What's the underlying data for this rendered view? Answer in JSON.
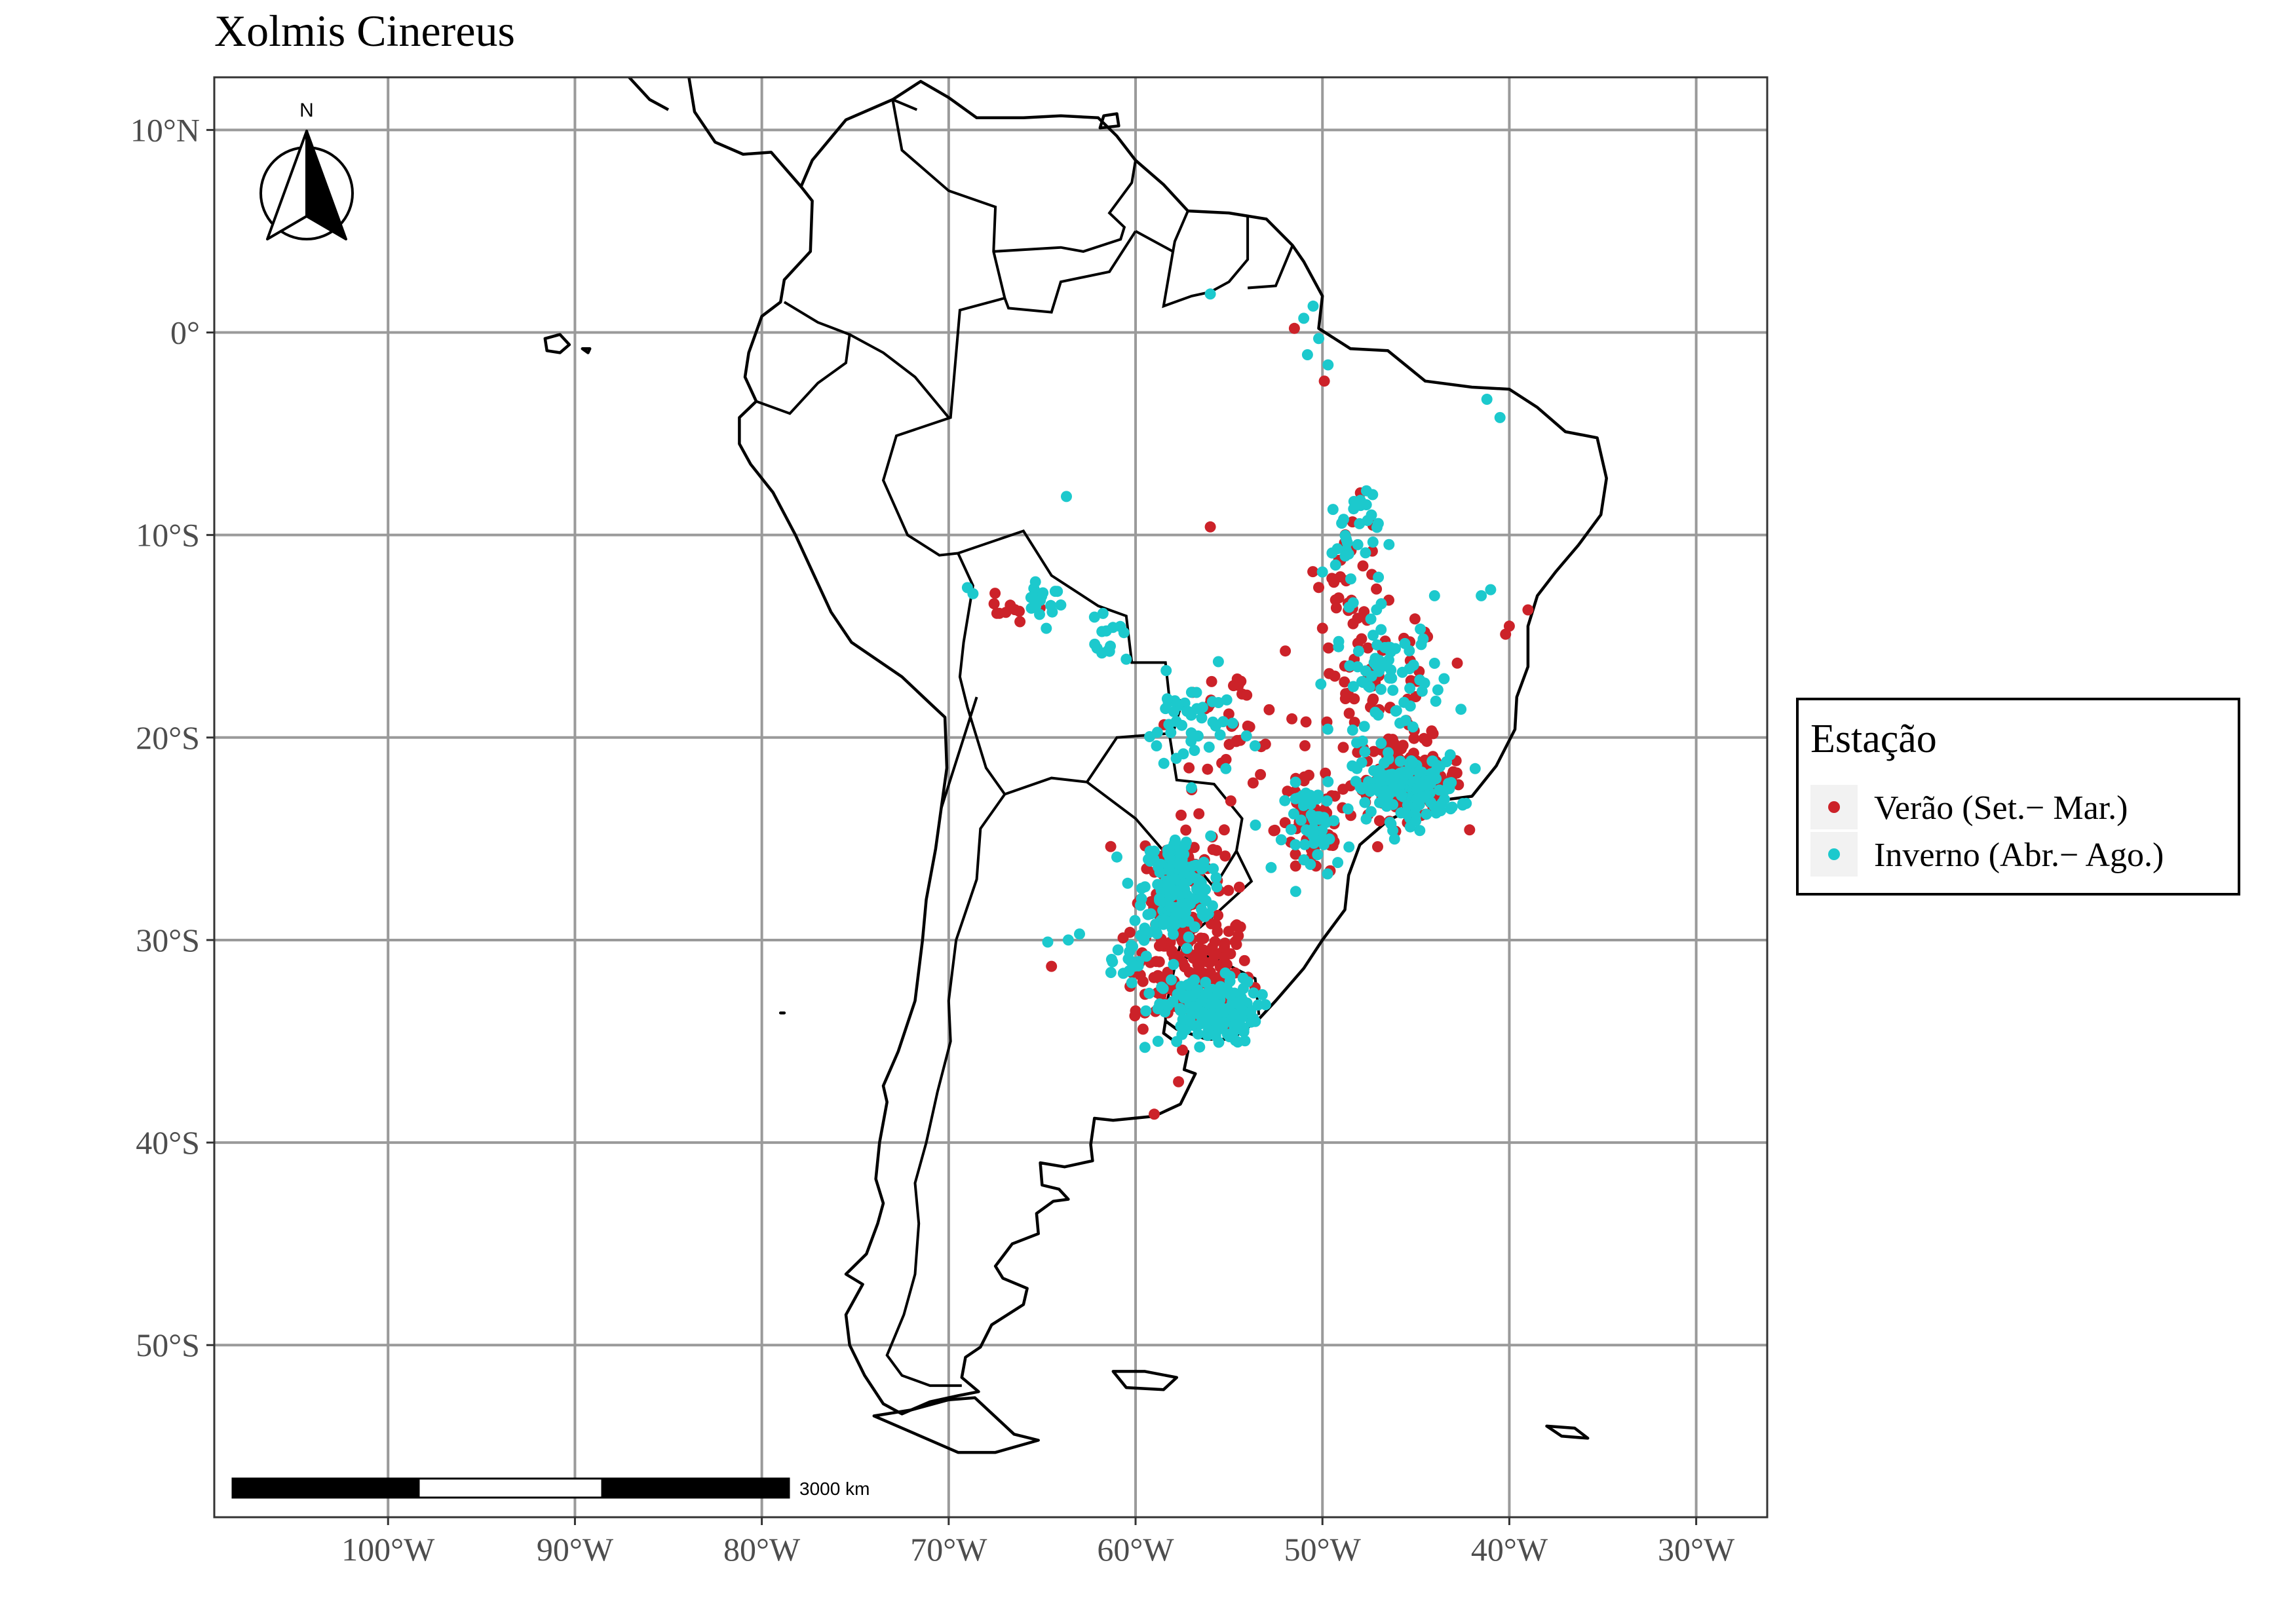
{
  "title": "Xolmis Cinereus",
  "map": {
    "lon_range": [
      -109.3,
      -26.2
    ],
    "lat_range": [
      -58.5,
      12.6
    ],
    "x_ticks": [
      {
        "lon": -100,
        "label": "100°W"
      },
      {
        "lon": -90,
        "label": "90°W"
      },
      {
        "lon": -80,
        "label": "80°W"
      },
      {
        "lon": -70,
        "label": "70°W"
      },
      {
        "lon": -60,
        "label": "60°W"
      },
      {
        "lon": -50,
        "label": "50°W"
      },
      {
        "lon": -40,
        "label": "40°W"
      },
      {
        "lon": -30,
        "label": "30°W"
      }
    ],
    "y_ticks": [
      {
        "lat": 10,
        "label": "10°N"
      },
      {
        "lat": 0,
        "label": "0°"
      },
      {
        "lat": -10,
        "label": "10°S"
      },
      {
        "lat": -20,
        "label": "20°S"
      },
      {
        "lat": -30,
        "label": "30°S"
      },
      {
        "lat": -40,
        "label": "40°S"
      },
      {
        "lat": -50,
        "label": "50°S"
      }
    ],
    "grid": true
  },
  "north_arrow": {
    "label": "N"
  },
  "scale_bar": {
    "label": "3000 km",
    "segments": 3
  },
  "legend": {
    "title": "Estação",
    "position": "right",
    "items": [
      {
        "label": "Verão (Set.− Mar.)",
        "color": "#cc2229"
      },
      {
        "label": "Inverno (Abr.− Ago.)",
        "color": "#1cc9cd"
      }
    ]
  },
  "colors": {
    "summer": "#cc2229",
    "winter": "#1cc9cd",
    "grid": "#9a9a9a",
    "land_outline": "#000000"
  },
  "chart_data": {
    "type": "scatter",
    "title": "Xolmis Cinereus",
    "xlabel": "",
    "ylabel": "",
    "xlim": [
      -109.3,
      -26.2
    ],
    "ylim": [
      -58.5,
      12.6
    ],
    "series": [
      {
        "name": "Verão (Set.− Mar.)",
        "color": "#cc2229",
        "clusters": [
          {
            "lon": -57.0,
            "lat": -31.5,
            "spread": [
              3.2,
              3.0
            ],
            "n": 150
          },
          {
            "lon": -57.5,
            "lat": -27.0,
            "spread": [
              2.2,
              2.8
            ],
            "n": 90
          },
          {
            "lon": -45.5,
            "lat": -22.0,
            "spread": [
              3.0,
              2.0
            ],
            "n": 110
          },
          {
            "lon": -50.5,
            "lat": -24.5,
            "spread": [
              2.0,
              2.5
            ],
            "n": 60
          },
          {
            "lon": -47.0,
            "lat": -17.5,
            "spread": [
              3.5,
              3.5
            ],
            "n": 60
          },
          {
            "lon": -48.5,
            "lat": -11.5,
            "spread": [
              1.8,
              3.0
            ],
            "n": 30
          },
          {
            "lon": -55.0,
            "lat": -19.5,
            "spread": [
              3.0,
              3.0
            ],
            "n": 35
          },
          {
            "lon": -67.0,
            "lat": -14.0,
            "spread": [
              1.2,
              1.0
            ],
            "n": 10
          }
        ],
        "points": [
          {
            "lon": -56.0,
            "lat": -9.6
          },
          {
            "lon": -49.9,
            "lat": -2.4
          },
          {
            "lon": -51.5,
            "lat": 0.2
          },
          {
            "lon": -64.5,
            "lat": -31.3
          },
          {
            "lon": -60.0,
            "lat": -33.5
          },
          {
            "lon": -59.0,
            "lat": -38.6
          },
          {
            "lon": -57.7,
            "lat": -37.0
          },
          {
            "lon": -40.0,
            "lat": -14.5
          },
          {
            "lon": -39.0,
            "lat": -13.7
          },
          {
            "lon": -40.2,
            "lat": -14.9
          },
          {
            "lon": -59.6,
            "lat": -34.4
          }
        ]
      },
      {
        "name": "Inverno (Abr.− Ago.)",
        "color": "#1cc9cd",
        "clusters": [
          {
            "lon": -57.8,
            "lat": -27.5,
            "spread": [
              1.8,
              2.6
            ],
            "n": 170
          },
          {
            "lon": -56.0,
            "lat": -33.5,
            "spread": [
              2.5,
              1.6
            ],
            "n": 170
          },
          {
            "lon": -45.5,
            "lat": -22.5,
            "spread": [
              2.8,
              1.6
            ],
            "n": 150
          },
          {
            "lon": -50.2,
            "lat": -24.5,
            "spread": [
              1.8,
              2.2
            ],
            "n": 50
          },
          {
            "lon": -46.5,
            "lat": -17.0,
            "spread": [
              3.0,
              3.0
            ],
            "n": 70
          },
          {
            "lon": -48.5,
            "lat": -10.0,
            "spread": [
              1.5,
              3.0
            ],
            "n": 35
          },
          {
            "lon": -57.0,
            "lat": -19.5,
            "spread": [
              2.5,
              2.5
            ],
            "n": 45
          },
          {
            "lon": -65.0,
            "lat": -13.0,
            "spread": [
              1.2,
              1.3
            ],
            "n": 18
          },
          {
            "lon": -61.5,
            "lat": -15.5,
            "spread": [
              1.2,
              1.2
            ],
            "n": 14
          },
          {
            "lon": -60.0,
            "lat": -31.0,
            "spread": [
              1.0,
              2.0
            ],
            "n": 20
          }
        ],
        "points": [
          {
            "lon": -56.0,
            "lat": 1.9
          },
          {
            "lon": -50.5,
            "lat": 1.3
          },
          {
            "lon": -51.0,
            "lat": 0.7
          },
          {
            "lon": -50.2,
            "lat": -0.3
          },
          {
            "lon": -50.8,
            "lat": -1.1
          },
          {
            "lon": -49.7,
            "lat": -1.6
          },
          {
            "lon": -41.2,
            "lat": -3.3
          },
          {
            "lon": -40.5,
            "lat": -4.2
          },
          {
            "lon": -69.0,
            "lat": -12.6
          },
          {
            "lon": -68.7,
            "lat": -12.9
          },
          {
            "lon": -63.7,
            "lat": -8.1
          },
          {
            "lon": -64.7,
            "lat": -30.1
          },
          {
            "lon": -63.0,
            "lat": -29.7
          },
          {
            "lon": -63.6,
            "lat": -30.0
          },
          {
            "lon": -61.0,
            "lat": -25.9
          },
          {
            "lon": -59.5,
            "lat": -35.3
          },
          {
            "lon": -58.8,
            "lat": -35.0
          },
          {
            "lon": -44.0,
            "lat": -13.0
          },
          {
            "lon": -41.5,
            "lat": -13.0
          },
          {
            "lon": -41.0,
            "lat": -12.7
          }
        ]
      }
    ]
  }
}
